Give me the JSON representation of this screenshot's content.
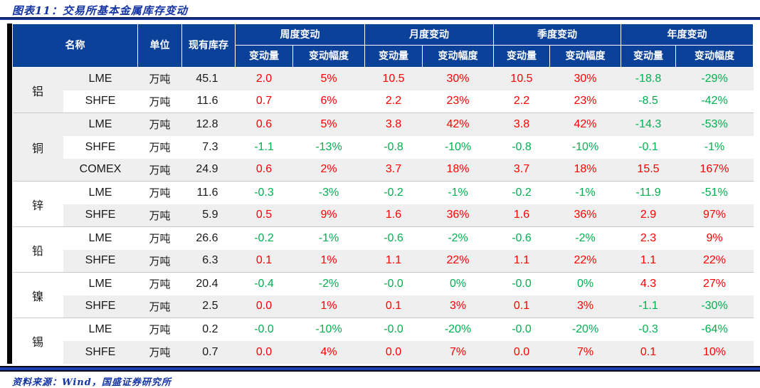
{
  "title": "图表11：交易所基本金属库存变动",
  "source": "资料来源：Wind，国盛证券研究所",
  "colors": {
    "accent": "#1434a4",
    "header_bg": "#0b4199",
    "header_text": "#ffffff",
    "pos": "#fe0000",
    "neg": "#00b050",
    "stripe": "#efefef",
    "group_line": "#c9c9c9",
    "left_bar": "#050505"
  },
  "table": {
    "header": {
      "name": "名称",
      "unit": "单位",
      "inventory": "现有库存",
      "groups": [
        {
          "label": "周度变动"
        },
        {
          "label": "月度变动"
        },
        {
          "label": "季度变动"
        },
        {
          "label": "年度变动"
        }
      ],
      "sub_amount": "变动量",
      "sub_rate": "变动幅度"
    },
    "groups": [
      {
        "metal": "铝",
        "rows": [
          {
            "exchange": "LME",
            "unit": "万吨",
            "inventory": "45.1",
            "changes": [
              {
                "amount": "2.0",
                "rate": "5%",
                "dir": "up"
              },
              {
                "amount": "10.5",
                "rate": "30%",
                "dir": "up"
              },
              {
                "amount": "10.5",
                "rate": "30%",
                "dir": "up"
              },
              {
                "amount": "-18.8",
                "rate": "-29%",
                "dir": "down"
              }
            ]
          },
          {
            "exchange": "SHFE",
            "unit": "万吨",
            "inventory": "11.6",
            "changes": [
              {
                "amount": "0.7",
                "rate": "6%",
                "dir": "up"
              },
              {
                "amount": "2.2",
                "rate": "23%",
                "dir": "up"
              },
              {
                "amount": "2.2",
                "rate": "23%",
                "dir": "up"
              },
              {
                "amount": "-8.5",
                "rate": "-42%",
                "dir": "down"
              }
            ]
          }
        ]
      },
      {
        "metal": "铜",
        "rows": [
          {
            "exchange": "LME",
            "unit": "万吨",
            "inventory": "12.8",
            "changes": [
              {
                "amount": "0.6",
                "rate": "5%",
                "dir": "up"
              },
              {
                "amount": "3.8",
                "rate": "42%",
                "dir": "up"
              },
              {
                "amount": "3.8",
                "rate": "42%",
                "dir": "up"
              },
              {
                "amount": "-14.3",
                "rate": "-53%",
                "dir": "down"
              }
            ]
          },
          {
            "exchange": "SHFE",
            "unit": "万吨",
            "inventory": "7.3",
            "changes": [
              {
                "amount": "-1.1",
                "rate": "-13%",
                "dir": "down"
              },
              {
                "amount": "-0.8",
                "rate": "-10%",
                "dir": "down"
              },
              {
                "amount": "-0.8",
                "rate": "-10%",
                "dir": "down"
              },
              {
                "amount": "-0.1",
                "rate": "-1%",
                "dir": "down"
              }
            ]
          },
          {
            "exchange": "COMEX",
            "unit": "万吨",
            "inventory": "24.9",
            "changes": [
              {
                "amount": "0.6",
                "rate": "2%",
                "dir": "up"
              },
              {
                "amount": "3.7",
                "rate": "18%",
                "dir": "up"
              },
              {
                "amount": "3.7",
                "rate": "18%",
                "dir": "up"
              },
              {
                "amount": "15.5",
                "rate": "167%",
                "dir": "up"
              }
            ]
          }
        ]
      },
      {
        "metal": "锌",
        "rows": [
          {
            "exchange": "LME",
            "unit": "万吨",
            "inventory": "11.6",
            "changes": [
              {
                "amount": "-0.3",
                "rate": "-3%",
                "dir": "down"
              },
              {
                "amount": "-0.2",
                "rate": "-1%",
                "dir": "down"
              },
              {
                "amount": "-0.2",
                "rate": "-1%",
                "dir": "down"
              },
              {
                "amount": "-11.9",
                "rate": "-51%",
                "dir": "down"
              }
            ]
          },
          {
            "exchange": "SHFE",
            "unit": "万吨",
            "inventory": "5.9",
            "changes": [
              {
                "amount": "0.5",
                "rate": "9%",
                "dir": "up"
              },
              {
                "amount": "1.6",
                "rate": "36%",
                "dir": "up"
              },
              {
                "amount": "1.6",
                "rate": "36%",
                "dir": "up"
              },
              {
                "amount": "2.9",
                "rate": "97%",
                "dir": "up"
              }
            ]
          }
        ]
      },
      {
        "metal": "铅",
        "rows": [
          {
            "exchange": "LME",
            "unit": "万吨",
            "inventory": "26.6",
            "changes": [
              {
                "amount": "-0.2",
                "rate": "-1%",
                "dir": "down"
              },
              {
                "amount": "-0.6",
                "rate": "-2%",
                "dir": "down"
              },
              {
                "amount": "-0.6",
                "rate": "-2%",
                "dir": "down"
              },
              {
                "amount": "2.3",
                "rate": "9%",
                "dir": "up"
              }
            ]
          },
          {
            "exchange": "SHFE",
            "unit": "万吨",
            "inventory": "6.3",
            "changes": [
              {
                "amount": "0.1",
                "rate": "1%",
                "dir": "up"
              },
              {
                "amount": "1.1",
                "rate": "22%",
                "dir": "up"
              },
              {
                "amount": "1.1",
                "rate": "22%",
                "dir": "up"
              },
              {
                "amount": "1.1",
                "rate": "22%",
                "dir": "up"
              }
            ]
          }
        ]
      },
      {
        "metal": "镍",
        "rows": [
          {
            "exchange": "LME",
            "unit": "万吨",
            "inventory": "20.4",
            "changes": [
              {
                "amount": "-0.4",
                "rate": "-2%",
                "dir": "down"
              },
              {
                "amount": "-0.0",
                "rate": "0%",
                "dir": "down"
              },
              {
                "amount": "-0.0",
                "rate": "0%",
                "dir": "down"
              },
              {
                "amount": "4.3",
                "rate": "27%",
                "dir": "up"
              }
            ]
          },
          {
            "exchange": "SHFE",
            "unit": "万吨",
            "inventory": "2.5",
            "changes": [
              {
                "amount": "0.0",
                "rate": "1%",
                "dir": "up"
              },
              {
                "amount": "0.1",
                "rate": "3%",
                "dir": "up"
              },
              {
                "amount": "0.1",
                "rate": "3%",
                "dir": "up"
              },
              {
                "amount": "-1.1",
                "rate": "-30%",
                "dir": "down"
              }
            ]
          }
        ]
      },
      {
        "metal": "锡",
        "rows": [
          {
            "exchange": "LME",
            "unit": "万吨",
            "inventory": "0.2",
            "changes": [
              {
                "amount": "-0.0",
                "rate": "-10%",
                "dir": "down"
              },
              {
                "amount": "-0.0",
                "rate": "-20%",
                "dir": "down"
              },
              {
                "amount": "-0.0",
                "rate": "-20%",
                "dir": "down"
              },
              {
                "amount": "-0.3",
                "rate": "-64%",
                "dir": "down"
              }
            ]
          },
          {
            "exchange": "SHFE",
            "unit": "万吨",
            "inventory": "0.7",
            "changes": [
              {
                "amount": "0.0",
                "rate": "4%",
                "dir": "up"
              },
              {
                "amount": "0.0",
                "rate": "7%",
                "dir": "up"
              },
              {
                "amount": "0.0",
                "rate": "7%",
                "dir": "up"
              },
              {
                "amount": "0.1",
                "rate": "10%",
                "dir": "up"
              }
            ]
          }
        ]
      }
    ]
  }
}
